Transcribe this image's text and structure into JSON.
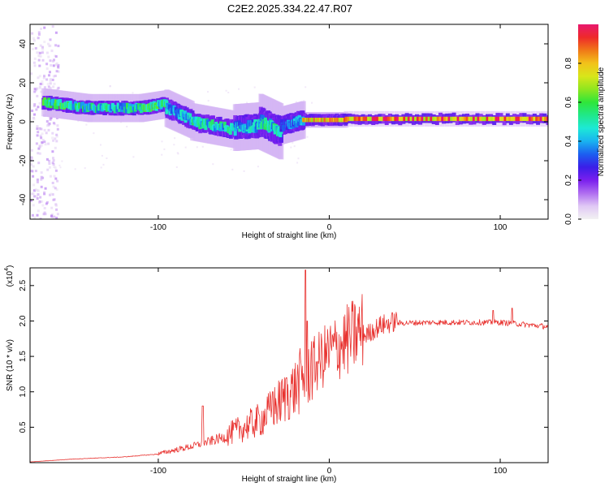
{
  "title": "C2E2.2025.334.22.47.R07",
  "colors": {
    "snr_line": "#e8322f",
    "cb_stops": [
      "#f2f2f2",
      "#e0c8f5",
      "#b06ef0",
      "#7a1fee",
      "#3b1ee8",
      "#1c5ef0",
      "#19b3f0",
      "#1de9d6",
      "#20e88a",
      "#2fe63a",
      "#8fe61f",
      "#d8e61a",
      "#f2c21a",
      "#f07818",
      "#ee2a2a",
      "#e8186e"
    ]
  },
  "chart_data": [
    {
      "type": "heatmap",
      "xlabel": "Height of straight line (km)",
      "ylabel": "Frequency (Hz)",
      "xlim": [
        -175,
        128
      ],
      "ylim": [
        -50,
        50
      ],
      "x_ticks": [
        -100,
        0,
        100
      ],
      "y_ticks": [
        -40,
        -20,
        0,
        20,
        40
      ],
      "grid": false,
      "colorbar": {
        "label": "Normalized spectral amplitude",
        "range": [
          0,
          1
        ],
        "ticks": [
          0.0,
          0.2,
          0.4,
          0.6,
          0.8
        ]
      },
      "ridge_segments": [
        {
          "x": [
            -167,
            -140
          ],
          "f": [
            10,
            7
          ],
          "level": 0.5,
          "width": 3
        },
        {
          "x": [
            -140,
            -110
          ],
          "f": [
            7,
            7
          ],
          "level": 0.45,
          "width": 3
        },
        {
          "x": [
            -110,
            -95
          ],
          "f": [
            7,
            9
          ],
          "level": 0.5,
          "width": 3
        },
        {
          "x": [
            -95,
            -80
          ],
          "f": [
            7,
            1
          ],
          "level": 0.4,
          "width": 4
        },
        {
          "x": [
            -80,
            -55
          ],
          "f": [
            0,
            -4
          ],
          "level": 0.45,
          "width": 4
        },
        {
          "x": [
            -55,
            -40
          ],
          "f": [
            -3,
            -2
          ],
          "level": 0.4,
          "width": 5
        },
        {
          "x": [
            -40,
            -28
          ],
          "f": [
            0,
            -5
          ],
          "level": 0.45,
          "width": 6
        },
        {
          "x": [
            -28,
            -15
          ],
          "f": [
            -2,
            1
          ],
          "level": 0.35,
          "width": 4
        },
        {
          "x": [
            -15,
            10
          ],
          "f": [
            1,
            1
          ],
          "level": 0.8,
          "width": 2.5
        },
        {
          "x": [
            10,
            128
          ],
          "f": [
            1.5,
            1.5
          ],
          "level": 0.85,
          "width": 2.5
        }
      ]
    },
    {
      "type": "line",
      "xlabel": "Height of straight line (km)",
      "ylabel": "SNR (10 * v/v)",
      "y_multiplier": "(x10",
      "y_multiplier_exp": "4",
      "xlim": [
        -175,
        128
      ],
      "ylim": [
        0,
        2.75
      ],
      "x_ticks": [
        -100,
        0,
        100
      ],
      "y_ticks": [
        0.5,
        1.0,
        1.5,
        2.0,
        2.5
      ],
      "grid": false,
      "envelope": {
        "x": [
          -175,
          -150,
          -120,
          -100,
          -80,
          -60,
          -50,
          -40,
          -30,
          -20,
          -15,
          -10,
          -5,
          0,
          10,
          20,
          30,
          40,
          60,
          80,
          100,
          110,
          128
        ],
        "y": [
          0.01,
          0.05,
          0.08,
          0.12,
          0.22,
          0.35,
          0.45,
          0.55,
          0.75,
          0.95,
          1.1,
          1.25,
          1.35,
          1.45,
          1.6,
          1.75,
          1.9,
          1.97,
          1.98,
          1.98,
          1.98,
          1.96,
          1.92
        ]
      },
      "peaks": [
        {
          "x": -74,
          "y": 0.8
        },
        {
          "x": -33,
          "y": 1.0
        },
        {
          "x": -14,
          "y": 2.72
        },
        {
          "x": -13,
          "y": 2.0
        },
        {
          "x": -25,
          "y": 1.2
        },
        {
          "x": 107,
          "y": 2.18
        },
        {
          "x": 96,
          "y": 2.15
        }
      ]
    }
  ]
}
